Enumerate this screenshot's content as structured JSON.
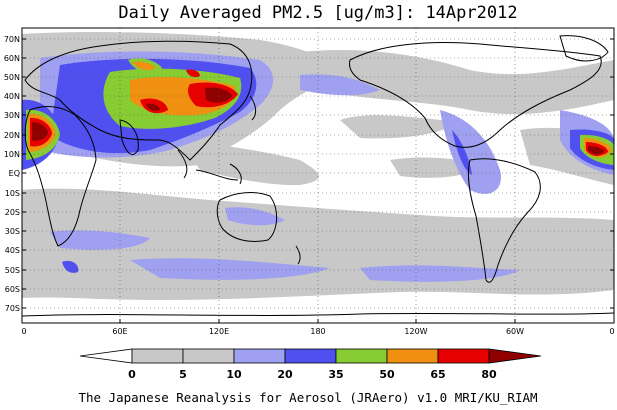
{
  "title": "Daily Averaged PM2.5 [ug/m3]: 14Apr2012",
  "footer": "The Japanese Reanalysis for Aerosol (JRAero) v1.0 MRI/KU_RIAM",
  "lat_labels": [
    "70N",
    "60N",
    "50N",
    "40N",
    "30N",
    "20N",
    "10N",
    "EQ",
    "10S",
    "20S",
    "30S",
    "40S",
    "50S",
    "60S",
    "70S"
  ],
  "lon_labels": [
    "0",
    "60E",
    "120E",
    "180",
    "120W",
    "60W",
    "0"
  ],
  "colorbar": {
    "ticks": [
      "0",
      "5",
      "10",
      "20",
      "35",
      "50",
      "65",
      "80"
    ],
    "colors": [
      "#ffffff",
      "#c8c8c8",
      "#a0a0f0",
      "#5050f0",
      "#88cc33",
      "#f09010",
      "#e80000",
      "#900000"
    ]
  },
  "colors": {
    "grey": "#c8c8c8",
    "lightblue": "#a0a0f0",
    "blue": "#5050f0",
    "green": "#88cc33",
    "orange": "#f09010",
    "red": "#e80000",
    "darkred": "#900000",
    "coast": "#000000"
  }
}
